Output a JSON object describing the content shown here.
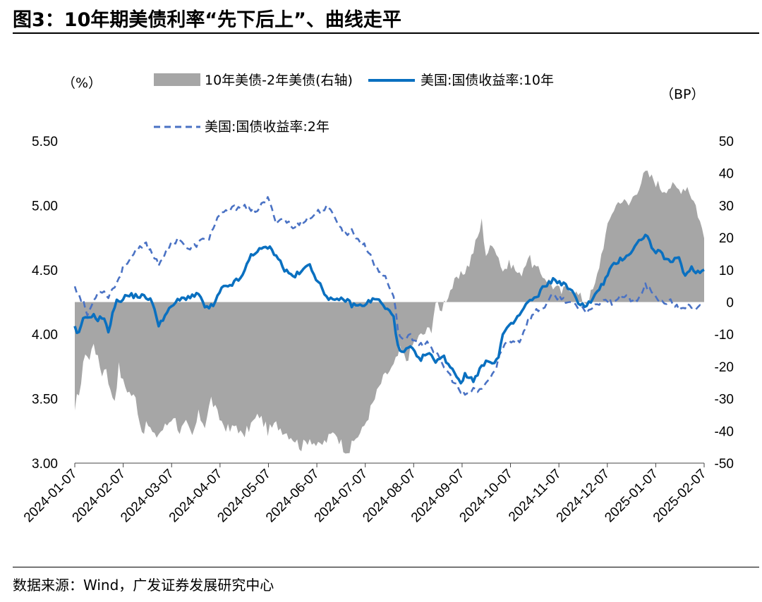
{
  "title": "图3：10年期美债利率“先下后上”、曲线走平",
  "source": "数据来源：Wind，广发证券发展研究中心",
  "colors": {
    "spread": "#a6a6a6",
    "y10": "#0a70c0",
    "y2": "#4a72c4"
  },
  "chart_data": {
    "type": "line+area",
    "left_unit": "（%）",
    "right_unit": "（BP）",
    "ylim_left": [
      3.0,
      5.5
    ],
    "ylim_right": [
      -50,
      50
    ],
    "left_ticks": [
      "5.50",
      "5.00",
      "4.50",
      "4.00",
      "3.50",
      "3.00"
    ],
    "right_ticks": [
      "50",
      "40",
      "30",
      "20",
      "10",
      "0",
      "-10",
      "-20",
      "-30",
      "-40",
      "-50"
    ],
    "categories": [
      "2024-01-07",
      "2024-02-07",
      "2024-03-07",
      "2024-04-07",
      "2024-05-07",
      "2024-06-07",
      "2024-07-07",
      "2024-08-07",
      "2024-09-07",
      "2024-10-07",
      "2024-11-07",
      "2024-12-07",
      "2025-01-07",
      "2025-02-07"
    ],
    "legend": {
      "spread": "10年美债-2年美债(右轴)",
      "y10": "美国:国债收益率:10年",
      "y2": "美国:国债收益率:2年"
    },
    "series": [
      {
        "name": "美国:国债收益率:10年",
        "axis": "left",
        "style": "solid",
        "anchors": [
          [
            0,
            4.05
          ],
          [
            0.03,
            4.0
          ],
          [
            0.12,
            4.0
          ],
          [
            0.16,
            4.1
          ],
          [
            0.4,
            4.15
          ],
          [
            0.55,
            4.12
          ],
          [
            0.7,
            4.13
          ],
          [
            0.8,
            4.0
          ],
          [
            0.9,
            4.18
          ],
          [
            1.0,
            4.25
          ],
          [
            1.25,
            4.3
          ],
          [
            1.5,
            4.3
          ],
          [
            1.8,
            4.28
          ],
          [
            2.0,
            4.08
          ],
          [
            2.4,
            4.25
          ],
          [
            2.6,
            4.28
          ],
          [
            2.8,
            4.3
          ],
          [
            3.0,
            4.3
          ],
          [
            3.1,
            4.2
          ],
          [
            3.3,
            4.22
          ],
          [
            3.5,
            4.35
          ],
          [
            3.8,
            4.4
          ],
          [
            4.0,
            4.45
          ],
          [
            4.2,
            4.62
          ],
          [
            4.4,
            4.65
          ],
          [
            4.6,
            4.68
          ],
          [
            4.8,
            4.62
          ],
          [
            5.0,
            4.5
          ],
          [
            5.2,
            4.45
          ],
          [
            5.4,
            4.48
          ],
          [
            5.6,
            4.55
          ],
          [
            5.8,
            4.4
          ],
          [
            6.0,
            4.3
          ],
          [
            6.2,
            4.25
          ],
          [
            6.4,
            4.28
          ],
          [
            6.6,
            4.23
          ],
          [
            6.8,
            4.22
          ],
          [
            7.0,
            4.25
          ],
          [
            7.2,
            4.28
          ],
          [
            7.4,
            4.2
          ],
          [
            7.6,
            4.15
          ],
          [
            7.7,
            3.9
          ],
          [
            7.8,
            3.85
          ],
          [
            8.0,
            3.9
          ],
          [
            8.2,
            3.8
          ],
          [
            8.4,
            3.85
          ],
          [
            8.6,
            3.8
          ],
          [
            8.8,
            3.82
          ],
          [
            9.0,
            3.73
          ],
          [
            9.2,
            3.63
          ],
          [
            9.3,
            3.68
          ],
          [
            9.5,
            3.65
          ],
          [
            9.7,
            3.75
          ],
          [
            9.9,
            3.8
          ],
          [
            10.0,
            3.78
          ],
          [
            10.1,
            3.82
          ],
          [
            10.2,
            4.0
          ],
          [
            10.4,
            4.07
          ],
          [
            10.6,
            4.15
          ],
          [
            10.8,
            4.25
          ],
          [
            11.0,
            4.28
          ],
          [
            11.2,
            4.38
          ],
          [
            11.4,
            4.42
          ],
          [
            11.6,
            4.4
          ],
          [
            11.8,
            4.35
          ],
          [
            12.0,
            4.25
          ],
          [
            12.2,
            4.22
          ],
          [
            12.4,
            4.3
          ],
          [
            12.6,
            4.4
          ],
          [
            12.8,
            4.52
          ],
          [
            13.0,
            4.58
          ],
          [
            13.2,
            4.62
          ],
          [
            13.4,
            4.7
          ],
          [
            13.6,
            4.78
          ],
          [
            13.8,
            4.65
          ],
          [
            14.0,
            4.62
          ],
          [
            14.2,
            4.55
          ],
          [
            14.4,
            4.6
          ],
          [
            14.55,
            4.45
          ],
          [
            14.7,
            4.52
          ],
          [
            14.85,
            4.48
          ],
          [
            15.0,
            4.5
          ]
        ]
      },
      {
        "name": "美国:国债收益率:2年",
        "axis": "left",
        "style": "dashed",
        "anchors": [
          [
            0,
            4.38
          ],
          [
            0.1,
            4.3
          ],
          [
            0.2,
            4.25
          ],
          [
            0.3,
            4.15
          ],
          [
            0.4,
            4.22
          ],
          [
            0.5,
            4.3
          ],
          [
            0.6,
            4.35
          ],
          [
            0.8,
            4.3
          ],
          [
            1.0,
            4.4
          ],
          [
            1.2,
            4.55
          ],
          [
            1.5,
            4.65
          ],
          [
            1.7,
            4.7
          ],
          [
            2.0,
            4.55
          ],
          [
            2.3,
            4.7
          ],
          [
            2.5,
            4.75
          ],
          [
            2.7,
            4.65
          ],
          [
            3.0,
            4.72
          ],
          [
            3.2,
            4.75
          ],
          [
            3.4,
            4.9
          ],
          [
            3.6,
            4.95
          ],
          [
            3.8,
            4.98
          ],
          [
            4.0,
            5.0
          ],
          [
            4.2,
            4.95
          ],
          [
            4.4,
            4.98
          ],
          [
            4.6,
            5.05
          ],
          [
            4.8,
            4.88
          ],
          [
            5.0,
            4.9
          ],
          [
            5.2,
            4.82
          ],
          [
            5.4,
            4.88
          ],
          [
            5.6,
            4.9
          ],
          [
            5.8,
            4.95
          ],
          [
            6.0,
            4.98
          ],
          [
            6.2,
            4.92
          ],
          [
            6.4,
            4.78
          ],
          [
            6.6,
            4.8
          ],
          [
            6.8,
            4.72
          ],
          [
            7.0,
            4.65
          ],
          [
            7.2,
            4.5
          ],
          [
            7.4,
            4.45
          ],
          [
            7.6,
            4.3
          ],
          [
            7.7,
            4.05
          ],
          [
            7.8,
            3.95
          ],
          [
            8.0,
            4.0
          ],
          [
            8.2,
            3.9
          ],
          [
            8.4,
            3.95
          ],
          [
            8.6,
            3.85
          ],
          [
            8.8,
            3.75
          ],
          [
            9.0,
            3.65
          ],
          [
            9.2,
            3.55
          ],
          [
            9.35,
            3.52
          ],
          [
            9.5,
            3.58
          ],
          [
            9.6,
            3.55
          ],
          [
            9.8,
            3.62
          ],
          [
            10.0,
            3.7
          ],
          [
            10.1,
            3.82
          ],
          [
            10.3,
            3.95
          ],
          [
            10.6,
            3.95
          ],
          [
            10.8,
            4.1
          ],
          [
            11.0,
            4.18
          ],
          [
            11.2,
            4.22
          ],
          [
            11.4,
            4.3
          ],
          [
            11.6,
            4.28
          ],
          [
            11.8,
            4.25
          ],
          [
            12.0,
            4.2
          ],
          [
            12.2,
            4.18
          ],
          [
            12.4,
            4.22
          ],
          [
            12.6,
            4.28
          ],
          [
            12.8,
            4.25
          ],
          [
            13.0,
            4.3
          ],
          [
            13.2,
            4.28
          ],
          [
            13.4,
            4.25
          ],
          [
            13.6,
            4.38
          ],
          [
            13.8,
            4.3
          ],
          [
            14.0,
            4.25
          ],
          [
            14.2,
            4.25
          ],
          [
            14.4,
            4.2
          ],
          [
            14.6,
            4.22
          ],
          [
            14.8,
            4.18
          ],
          [
            15.0,
            4.24
          ]
        ]
      },
      {
        "name": "10年美债-2年美债(右轴)",
        "axis": "right",
        "style": "area",
        "anchors": [
          [
            0,
            -35
          ],
          [
            0.05,
            -30
          ],
          [
            0.15,
            -25
          ],
          [
            0.25,
            -15
          ],
          [
            0.35,
            -18
          ],
          [
            0.45,
            -12
          ],
          [
            0.55,
            -18
          ],
          [
            0.65,
            -22
          ],
          [
            0.75,
            -20
          ],
          [
            0.85,
            -28
          ],
          [
            0.95,
            -30
          ],
          [
            1.05,
            -20
          ],
          [
            1.15,
            -25
          ],
          [
            1.3,
            -28
          ],
          [
            1.45,
            -30
          ],
          [
            1.6,
            -40
          ],
          [
            1.75,
            -38
          ],
          [
            1.9,
            -42
          ],
          [
            2.05,
            -40
          ],
          [
            2.2,
            -38
          ],
          [
            2.35,
            -35
          ],
          [
            2.5,
            -40
          ],
          [
            2.65,
            -38
          ],
          [
            2.8,
            -42
          ],
          [
            2.95,
            -35
          ],
          [
            3.1,
            -38
          ],
          [
            3.25,
            -30
          ],
          [
            3.4,
            -35
          ],
          [
            3.55,
            -38
          ],
          [
            3.7,
            -40
          ],
          [
            3.85,
            -38
          ],
          [
            4.0,
            -42
          ],
          [
            4.2,
            -38
          ],
          [
            4.4,
            -35
          ],
          [
            4.6,
            -40
          ],
          [
            4.8,
            -38
          ],
          [
            5.0,
            -40
          ],
          [
            5.2,
            -42
          ],
          [
            5.4,
            -45
          ],
          [
            5.6,
            -42
          ],
          [
            5.8,
            -45
          ],
          [
            6.0,
            -43
          ],
          [
            6.2,
            -40
          ],
          [
            6.4,
            -45
          ],
          [
            6.55,
            -46
          ],
          [
            6.7,
            -42
          ],
          [
            6.85,
            -40
          ],
          [
            7.0,
            -35
          ],
          [
            7.15,
            -30
          ],
          [
            7.3,
            -25
          ],
          [
            7.45,
            -22
          ],
          [
            7.6,
            -20
          ],
          [
            7.75,
            -15
          ],
          [
            7.9,
            -18
          ],
          [
            8.1,
            -12
          ],
          [
            8.3,
            -10
          ],
          [
            8.5,
            -8
          ],
          [
            8.6,
            0
          ],
          [
            8.7,
            -3
          ],
          [
            8.8,
            0
          ],
          [
            9.0,
            5
          ],
          [
            9.2,
            8
          ],
          [
            9.4,
            12
          ],
          [
            9.6,
            20
          ],
          [
            9.7,
            25
          ],
          [
            9.8,
            15
          ],
          [
            10.0,
            18
          ],
          [
            10.2,
            10
          ],
          [
            10.4,
            12
          ],
          [
            10.6,
            8
          ],
          [
            10.8,
            14
          ],
          [
            11.0,
            10
          ],
          [
            11.2,
            8
          ],
          [
            11.4,
            5
          ],
          [
            11.6,
            3
          ],
          [
            11.8,
            5
          ],
          [
            12.0,
            2
          ],
          [
            12.2,
            0
          ],
          [
            12.4,
            5
          ],
          [
            12.6,
            18
          ],
          [
            12.8,
            28
          ],
          [
            13.0,
            32
          ],
          [
            13.2,
            30
          ],
          [
            13.4,
            35
          ],
          [
            13.6,
            40
          ],
          [
            13.8,
            38
          ],
          [
            14.0,
            35
          ],
          [
            14.2,
            36
          ],
          [
            14.4,
            35
          ],
          [
            14.6,
            36
          ],
          [
            14.8,
            30
          ],
          [
            15.0,
            20
          ]
        ]
      }
    ]
  }
}
